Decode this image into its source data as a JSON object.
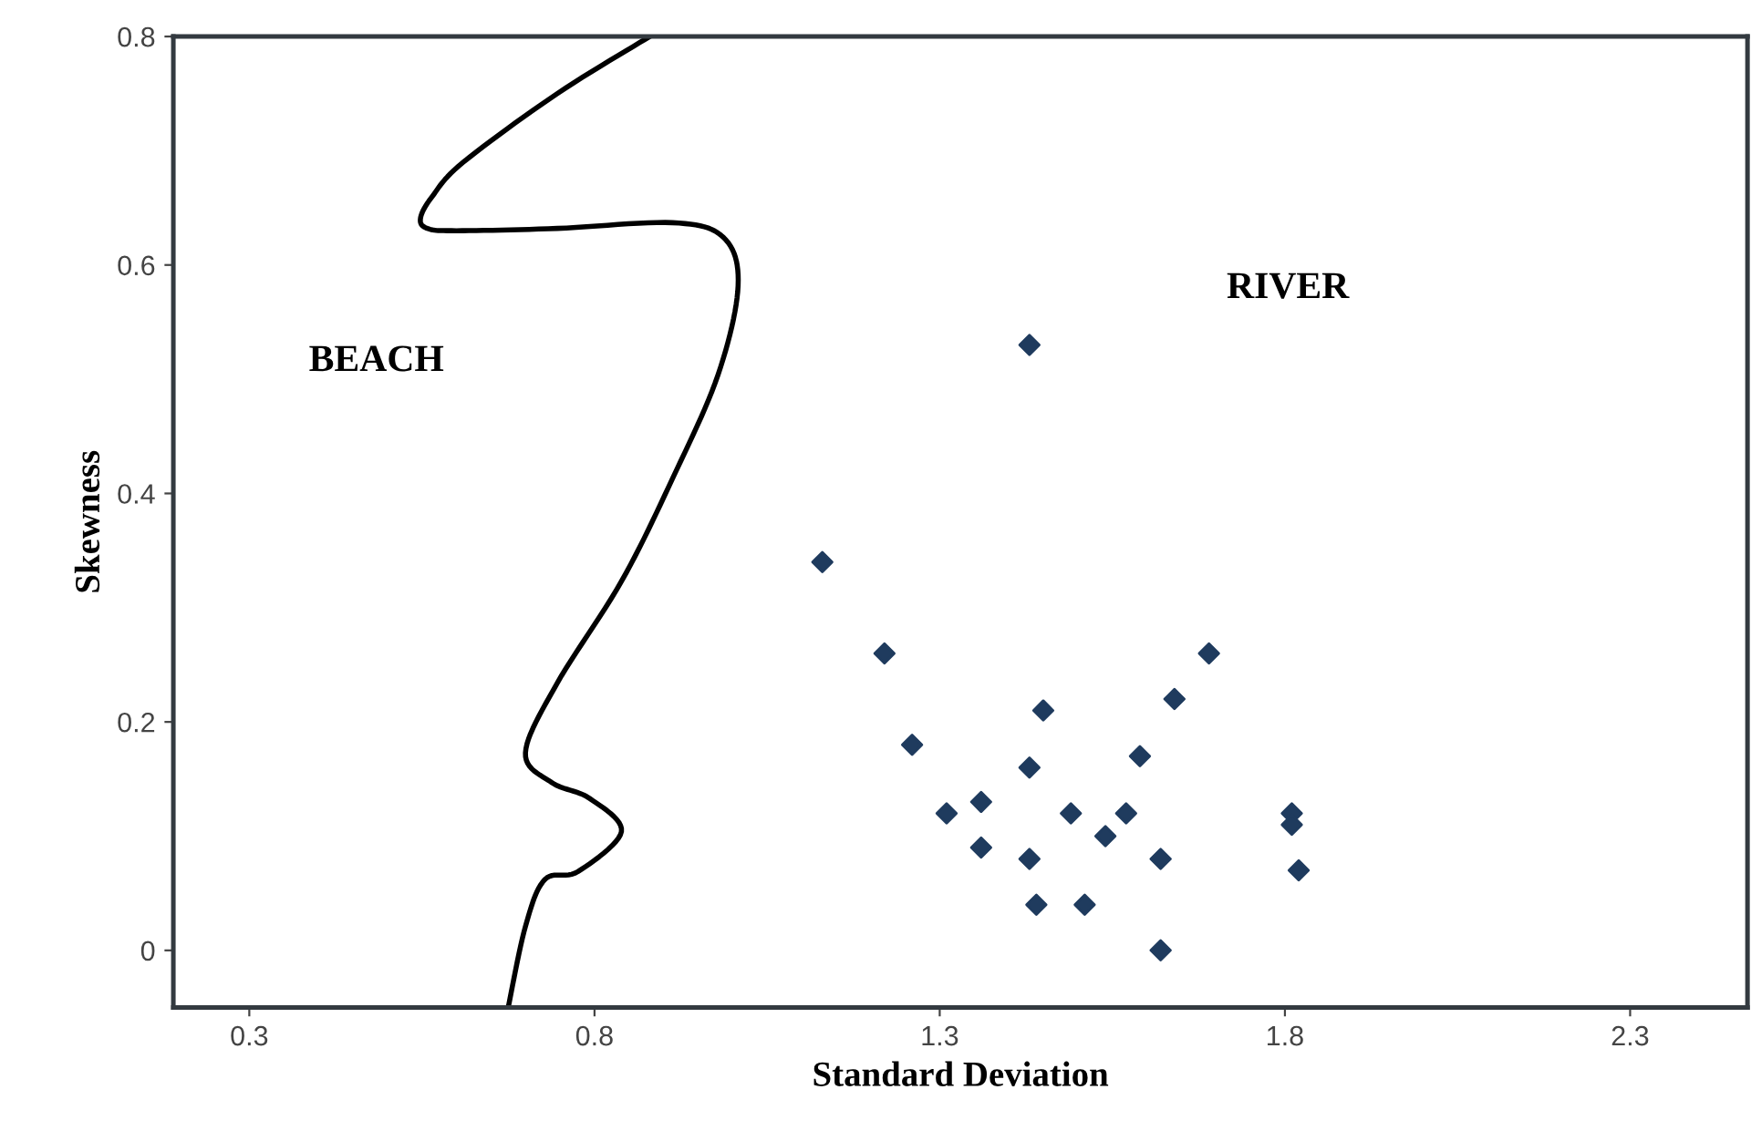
{
  "chart_data": {
    "type": "scatter",
    "xlabel": "Standard Deviation",
    "ylabel": "Skewness",
    "xlim": [
      0.19,
      2.47
    ],
    "ylim": [
      -0.05,
      0.8
    ],
    "xticks": [
      0.3,
      0.8,
      1.3,
      1.8,
      2.3
    ],
    "yticks": [
      0,
      0.2,
      0.4,
      0.6,
      0.8
    ],
    "grid": false,
    "legend": false,
    "annotations": [
      "BEACH",
      "RIVER"
    ],
    "series": [
      {
        "type": "line",
        "color": "#000000",
        "marker": "none",
        "line_style": "solid",
        "x": [
          0.88,
          0.746,
          0.61,
          0.565,
          0.548,
          0.558,
          0.6,
          0.746,
          0.913,
          0.987,
          1.008,
          0.979,
          0.913,
          0.839,
          0.746,
          0.7,
          0.738,
          0.793,
          0.839,
          0.776,
          0.728,
          0.7,
          0.675
        ],
        "values": [
          0.8,
          0.75,
          0.69,
          0.66,
          0.641,
          0.632,
          0.63,
          0.632,
          0.637,
          0.624,
          0.582,
          0.504,
          0.413,
          0.323,
          0.234,
          0.173,
          0.147,
          0.133,
          0.104,
          0.069,
          0.062,
          0.021,
          -0.05
        ]
      },
      {
        "color": "#1f3b5e",
        "marker": "diamond",
        "x": [
          1.43,
          1.13,
          1.22,
          1.26,
          1.45,
          1.43,
          1.31,
          1.36,
          1.36,
          1.43,
          1.44,
          1.51,
          1.49,
          1.54,
          1.57,
          1.59,
          1.64,
          1.69,
          1.62,
          1.62,
          1.81,
          1.81,
          1.82
        ],
        "values": [
          0.53,
          0.34,
          0.26,
          0.18,
          0.21,
          0.16,
          0.12,
          0.13,
          0.09,
          0.08,
          0.04,
          0.04,
          0.12,
          0.1,
          0.12,
          0.17,
          0.22,
          0.26,
          0.08,
          0.0,
          0.12,
          0.11,
          0.07
        ]
      }
    ]
  }
}
